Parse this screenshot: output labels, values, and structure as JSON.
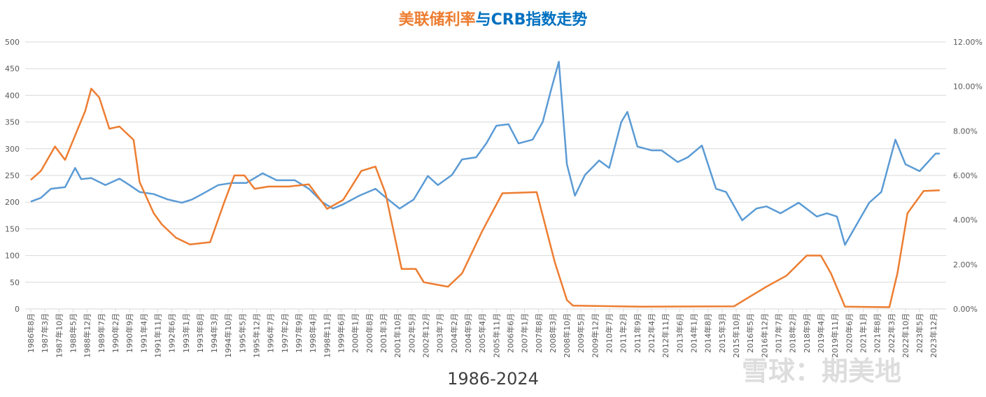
{
  "chart_data": {
    "type": "line",
    "title_part1": "美联储利率",
    "title_part2": "与CRB指数走势",
    "subtitle": "1986-2024",
    "watermark": "雪球：期美地",
    "grid": true,
    "legend": "none",
    "colors": {
      "crb": "#5b9bd5",
      "rate": "#ed7d31",
      "grid": "#d9d9d9"
    },
    "y_left": {
      "range": [
        0,
        500
      ],
      "ticks": [
        "0",
        "50",
        "100",
        "150",
        "200",
        "250",
        "300",
        "350",
        "400",
        "450",
        "500"
      ]
    },
    "y_right": {
      "range": [
        0,
        12
      ],
      "ticks": [
        "0.00%",
        "2.00%",
        "4.00%",
        "6.00%",
        "8.00%",
        "10.00%",
        "12.00%"
      ]
    },
    "x_ticks": [
      "1986年8月",
      "1987年3月",
      "1987年10月",
      "1988年5月",
      "1988年12月",
      "1989年7月",
      "1990年2月",
      "1990年9月",
      "1991年4月",
      "1991年11月",
      "1992年6月",
      "1993年1月",
      "1993年8月",
      "1994年3月",
      "1994年10月",
      "1995年5月",
      "1995年12月",
      "1996年7月",
      "1997年2月",
      "1997年9月",
      "1998年4月",
      "1998年11月",
      "1999年6月",
      "2000年1月",
      "2000年8月",
      "2001年3月",
      "2001年10月",
      "2002年5月",
      "2002年12月",
      "2003年7月",
      "2004年2月",
      "2004年9月",
      "2005年4月",
      "2005年11月",
      "2006年6月",
      "2007年1月",
      "2007年8月",
      "2008年3月",
      "2008年10月",
      "2009年5月",
      "2009年12月",
      "2010年7月",
      "2011年2月",
      "2011年9月",
      "2012年4月",
      "2012年11月",
      "2013年6月",
      "2014年1月",
      "2014年8月",
      "2015年3月",
      "2015年10月",
      "2016年5月",
      "2016年12月",
      "2017年7月",
      "2018年2月",
      "2018年9月",
      "2019年4月",
      "2019年11月",
      "2020年6月",
      "2021年1月",
      "2021年8月",
      "2022年3月",
      "2022年10月",
      "2023年5月",
      "2023年12月"
    ],
    "series": [
      {
        "key": "crb",
        "axis": "left",
        "points": [
          [
            "1986-08",
            201
          ],
          [
            "1987-01",
            208
          ],
          [
            "1987-06",
            225
          ],
          [
            "1988-01",
            228
          ],
          [
            "1988-06",
            264
          ],
          [
            "1988-09",
            243
          ],
          [
            "1989-02",
            245
          ],
          [
            "1989-09",
            232
          ],
          [
            "1990-04",
            244
          ],
          [
            "1990-09",
            232
          ],
          [
            "1991-02",
            219
          ],
          [
            "1991-09",
            215
          ],
          [
            "1992-04",
            205
          ],
          [
            "1992-11",
            199
          ],
          [
            "1993-04",
            205
          ],
          [
            "1993-09",
            215
          ],
          [
            "1994-05",
            232
          ],
          [
            "1994-12",
            236
          ],
          [
            "1995-07",
            236
          ],
          [
            "1996-03",
            254
          ],
          [
            "1996-10",
            241
          ],
          [
            "1997-07",
            241
          ],
          [
            "1998-02",
            225
          ],
          [
            "1998-09",
            199
          ],
          [
            "1999-02",
            188
          ],
          [
            "1999-07",
            196
          ],
          [
            "2000-03",
            212
          ],
          [
            "2000-11",
            225
          ],
          [
            "2001-04",
            209
          ],
          [
            "2001-11",
            188
          ],
          [
            "2002-06",
            205
          ],
          [
            "2003-01",
            249
          ],
          [
            "2003-06",
            232
          ],
          [
            "2004-01",
            251
          ],
          [
            "2004-06",
            280
          ],
          [
            "2005-01",
            284
          ],
          [
            "2005-06",
            310
          ],
          [
            "2005-11",
            343
          ],
          [
            "2006-05",
            346
          ],
          [
            "2006-10",
            310
          ],
          [
            "2007-05",
            317
          ],
          [
            "2007-10",
            350
          ],
          [
            "2008-02",
            408
          ],
          [
            "2008-06",
            463
          ],
          [
            "2008-10",
            271
          ],
          [
            "2009-02",
            212
          ],
          [
            "2009-07",
            251
          ],
          [
            "2010-02",
            278
          ],
          [
            "2010-07",
            264
          ],
          [
            "2011-01",
            350
          ],
          [
            "2011-04",
            369
          ],
          [
            "2011-09",
            304
          ],
          [
            "2012-04",
            297
          ],
          [
            "2012-09",
            297
          ],
          [
            "2013-05",
            275
          ],
          [
            "2013-10",
            284
          ],
          [
            "2014-05",
            306
          ],
          [
            "2014-12",
            225
          ],
          [
            "2015-05",
            219
          ],
          [
            "2016-01",
            166
          ],
          [
            "2016-08",
            188
          ],
          [
            "2017-01",
            192
          ],
          [
            "2017-08",
            179
          ],
          [
            "2018-05",
            199
          ],
          [
            "2019-02",
            173
          ],
          [
            "2019-07",
            179
          ],
          [
            "2019-12",
            173
          ],
          [
            "2020-04",
            120
          ],
          [
            "2020-09",
            153
          ],
          [
            "2021-04",
            199
          ],
          [
            "2021-10",
            219
          ],
          [
            "2022-05",
            317
          ],
          [
            "2022-10",
            271
          ],
          [
            "2023-05",
            258
          ],
          [
            "2024-01",
            291
          ],
          [
            "2024-03",
            291
          ]
        ]
      },
      {
        "key": "rate",
        "axis": "right",
        "points": [
          [
            "1986-08",
            5.8
          ],
          [
            "1987-01",
            6.2
          ],
          [
            "1987-08",
            7.3
          ],
          [
            "1988-01",
            6.7
          ],
          [
            "1988-06",
            7.8
          ],
          [
            "1988-11",
            8.9
          ],
          [
            "1989-02",
            9.9
          ],
          [
            "1989-06",
            9.5
          ],
          [
            "1989-11",
            8.1
          ],
          [
            "1990-04",
            8.2
          ],
          [
            "1990-11",
            7.6
          ],
          [
            "1991-02",
            5.7
          ],
          [
            "1991-09",
            4.3
          ],
          [
            "1992-01",
            3.8
          ],
          [
            "1992-08",
            3.2
          ],
          [
            "1993-03",
            2.9
          ],
          [
            "1994-01",
            3.0
          ],
          [
            "1994-08",
            4.8
          ],
          [
            "1995-01",
            6.0
          ],
          [
            "1995-06",
            6.0
          ],
          [
            "1995-11",
            5.4
          ],
          [
            "1996-06",
            5.5
          ],
          [
            "1997-04",
            5.5
          ],
          [
            "1998-02",
            5.6
          ],
          [
            "1998-11",
            4.5
          ],
          [
            "1999-07",
            4.9
          ],
          [
            "2000-04",
            6.2
          ],
          [
            "2000-11",
            6.4
          ],
          [
            "2001-04",
            5.2
          ],
          [
            "2001-08",
            3.5
          ],
          [
            "2001-12",
            1.8
          ],
          [
            "2002-07",
            1.8
          ],
          [
            "2002-11",
            1.2
          ],
          [
            "2003-11",
            1.0
          ],
          [
            "2004-06",
            1.6
          ],
          [
            "2005-04",
            3.5
          ],
          [
            "2006-02",
            5.2
          ],
          [
            "2007-07",
            5.25
          ],
          [
            "2007-12",
            3.5
          ],
          [
            "2008-04",
            2.1
          ],
          [
            "2008-10",
            0.4
          ],
          [
            "2009-01",
            0.15
          ],
          [
            "2011-11",
            0.1
          ],
          [
            "2015-09",
            0.12
          ],
          [
            "2016-02",
            0.4
          ],
          [
            "2017-01",
            1.0
          ],
          [
            "2017-11",
            1.5
          ],
          [
            "2018-09",
            2.4
          ],
          [
            "2019-04",
            2.4
          ],
          [
            "2019-09",
            1.6
          ],
          [
            "2020-04",
            0.1
          ],
          [
            "2022-02",
            0.08
          ],
          [
            "2022-06",
            1.6
          ],
          [
            "2022-11",
            4.3
          ],
          [
            "2023-07",
            5.3
          ],
          [
            "2024-03",
            5.33
          ]
        ]
      }
    ]
  }
}
